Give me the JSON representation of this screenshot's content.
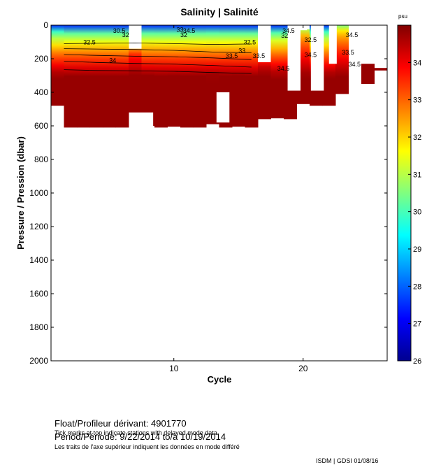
{
  "chart_data": {
    "type": "heatmap",
    "title": "Salinity | Salinité",
    "xlabel": "Cycle",
    "ylabel": "Pressure / Pression (dbar)",
    "xlim": [
      0.5,
      26.5
    ],
    "ylim": [
      2000,
      0
    ],
    "x_ticks": [
      10,
      20
    ],
    "y_ticks": [
      0,
      200,
      400,
      600,
      800,
      1000,
      1200,
      1400,
      1600,
      1800,
      2000
    ],
    "colorbar": {
      "label": "psu",
      "range": [
        26,
        35
      ],
      "ticks": [
        26,
        27,
        28,
        29,
        30,
        31,
        32,
        33,
        34
      ]
    },
    "profiles": [
      {
        "cycle": 1,
        "top": 0,
        "max_depth": 480,
        "sal_top": 27.5,
        "sal_bottom": 34.8
      },
      {
        "cycle": 2,
        "top": 0,
        "max_depth": 610,
        "sal_top": 27.5,
        "sal_bottom": 34.8
      },
      {
        "cycle": 3,
        "top": 0,
        "max_depth": 610,
        "sal_top": 27.5,
        "sal_bottom": 34.8
      },
      {
        "cycle": 4,
        "top": 0,
        "max_depth": 610,
        "sal_top": 27.5,
        "sal_bottom": 34.8
      },
      {
        "cycle": 5,
        "top": 0,
        "max_depth": 610,
        "sal_top": 27.5,
        "sal_bottom": 34.8
      },
      {
        "cycle": 6,
        "top": 0,
        "max_depth": 610,
        "sal_top": 27.5,
        "sal_bottom": 34.8
      },
      {
        "cycle": 7,
        "top": 140,
        "max_depth": 520,
        "sal_top": 32.5,
        "sal_bottom": 34.8
      },
      {
        "cycle": 8,
        "top": 0,
        "max_depth": 600,
        "sal_top": 27.5,
        "sal_bottom": 34.8
      },
      {
        "cycle": 9,
        "top": 0,
        "max_depth": 610,
        "sal_top": 27.5,
        "sal_bottom": 34.8
      },
      {
        "cycle": 10,
        "top": 0,
        "max_depth": 605,
        "sal_top": 27.5,
        "sal_bottom": 34.8
      },
      {
        "cycle": 11,
        "top": 0,
        "max_depth": 610,
        "sal_top": 27.5,
        "sal_bottom": 34.8
      },
      {
        "cycle": 12,
        "top": 0,
        "max_depth": 610,
        "sal_top": 27.5,
        "sal_bottom": 34.8
      },
      {
        "cycle": 13,
        "top": 0,
        "max_depth": 590,
        "sal_top": 27.5,
        "sal_bottom": 34.8
      },
      {
        "cycle": 14,
        "top": 0,
        "max_depth": 610,
        "sal_top": 27.5,
        "sal_bottom": 34.8
      },
      {
        "cycle": 15,
        "top": 0,
        "max_depth": 605,
        "sal_top": 27.5,
        "sal_bottom": 34.8
      },
      {
        "cycle": 16,
        "top": 0,
        "max_depth": 610,
        "sal_top": 27.5,
        "sal_bottom": 34.8
      },
      {
        "cycle": 17,
        "top": 220,
        "max_depth": 560,
        "sal_top": 33.8,
        "sal_bottom": 34.8
      },
      {
        "cycle": 18,
        "top": 0,
        "max_depth": 555,
        "sal_top": 27.5,
        "sal_bottom": 34.8
      },
      {
        "cycle": 19,
        "top": 0,
        "max_depth": 560,
        "sal_top": 27.5,
        "sal_bottom": 34.8
      },
      {
        "cycle": 20,
        "top": 25,
        "max_depth": 470,
        "sal_top": 31.0,
        "sal_bottom": 34.8
      },
      {
        "cycle": 21,
        "top": 0,
        "max_depth": 480,
        "sal_top": 27.5,
        "sal_bottom": 34.8
      },
      {
        "cycle": 22,
        "top": 0,
        "max_depth": 480,
        "sal_top": 27.5,
        "sal_bottom": 34.8
      },
      {
        "cycle": 23,
        "top": 0,
        "max_depth": 410,
        "sal_top": 30.5,
        "sal_bottom": 34.8
      },
      {
        "cycle": 24,
        "top": 0,
        "max_depth": 0,
        "sal_top": 34.8,
        "sal_bottom": 34.8
      },
      {
        "cycle": 25,
        "top": 230,
        "max_depth": 350,
        "sal_top": 34.8,
        "sal_bottom": 34.8
      },
      {
        "cycle": 26,
        "top": 255,
        "max_depth": 270,
        "sal_top": 34.8,
        "sal_bottom": 34.8
      }
    ],
    "gaps": [
      {
        "x0": 6.6,
        "x1": 7.5,
        "p0": 0,
        "p1": 140
      },
      {
        "x0": 7.5,
        "x1": 8.4,
        "p0": 520,
        "p1": 610
      },
      {
        "x0": 13.3,
        "x1": 14.3,
        "p0": 400,
        "p1": 580
      },
      {
        "x0": 16.5,
        "x1": 17.5,
        "p0": 0,
        "p1": 220
      },
      {
        "x0": 18.8,
        "x1": 19.8,
        "p0": 0,
        "p1": 390
      },
      {
        "x0": 19.8,
        "x1": 20.3,
        "p0": 0,
        "p1": 30
      },
      {
        "x0": 20.6,
        "x1": 21.6,
        "p0": 0,
        "p1": 390
      },
      {
        "x0": 22.0,
        "x1": 22.6,
        "p0": 0,
        "p1": 230
      }
    ],
    "contours": [
      {
        "level": "32.5",
        "points": [
          [
            1.5,
            110
          ],
          [
            4,
            108
          ],
          [
            7,
            106
          ],
          [
            10,
            110
          ],
          [
            13,
            115
          ],
          [
            16,
            112
          ]
        ]
      },
      {
        "level": "33",
        "points": [
          [
            1.5,
            140
          ],
          [
            4,
            142
          ],
          [
            7,
            145
          ],
          [
            10,
            150
          ],
          [
            13,
            160
          ],
          [
            16,
            165
          ]
        ]
      },
      {
        "level": "33.5",
        "points": [
          [
            1.5,
            175
          ],
          [
            4,
            180
          ],
          [
            7,
            185
          ],
          [
            10,
            188
          ],
          [
            13,
            195
          ],
          [
            16,
            205
          ]
        ]
      },
      {
        "level": "34",
        "points": [
          [
            1.5,
            215
          ],
          [
            4,
            222
          ],
          [
            7,
            228
          ],
          [
            10,
            232
          ],
          [
            13,
            240
          ],
          [
            16,
            250
          ]
        ]
      },
      {
        "level": "34.5",
        "points": [
          [
            1.5,
            265
          ],
          [
            4,
            270
          ],
          [
            7,
            272
          ],
          [
            10,
            275
          ],
          [
            13,
            282
          ],
          [
            16,
            288
          ]
        ]
      }
    ],
    "contour_labels": [
      {
        "text": "30.5",
        "cycle": 5.3,
        "pressure": 45
      },
      {
        "text": "32",
        "cycle": 6.0,
        "pressure": 70
      },
      {
        "text": "32.5",
        "cycle": 3.0,
        "pressure": 115
      },
      {
        "text": "34",
        "cycle": 5.0,
        "pressure": 222
      },
      {
        "text": "33",
        "cycle": 10.2,
        "pressure": 40
      },
      {
        "text": "34.5",
        "cycle": 10.7,
        "pressure": 45
      },
      {
        "text": "32",
        "cycle": 10.5,
        "pressure": 70
      },
      {
        "text": "32.5",
        "cycle": 15.4,
        "pressure": 115
      },
      {
        "text": "33",
        "cycle": 15.0,
        "pressure": 165
      },
      {
        "text": "33.5",
        "cycle": 14.0,
        "pressure": 195
      },
      {
        "text": "33.5",
        "cycle": 16.1,
        "pressure": 195
      },
      {
        "text": "34.5",
        "cycle": 18.0,
        "pressure": 270
      },
      {
        "text": "34.5",
        "cycle": 18.4,
        "pressure": 45
      },
      {
        "text": "32",
        "cycle": 18.3,
        "pressure": 75
      },
      {
        "text": "32.5",
        "cycle": 20.1,
        "pressure": 100
      },
      {
        "text": "34.5",
        "cycle": 20.1,
        "pressure": 190
      },
      {
        "text": "34.5",
        "cycle": 23.3,
        "pressure": 70
      },
      {
        "text": "33.5",
        "cycle": 23.0,
        "pressure": 175
      },
      {
        "text": "34.5",
        "cycle": 23.5,
        "pressure": 245
      }
    ]
  },
  "info": {
    "float_label": "Float/Profileur dérivant:",
    "float_id": "4901770",
    "period_label": "Period/Période:",
    "period_value": "9/22/2014  to/à  10/19/2014",
    "note_en": "Tick marks at top indicate stations with delayed mode data",
    "note_fr": "Les traits de l'axe supérieur indiquent les données en mode différé",
    "credit": "ISDM | GDSI  01/08/16"
  }
}
